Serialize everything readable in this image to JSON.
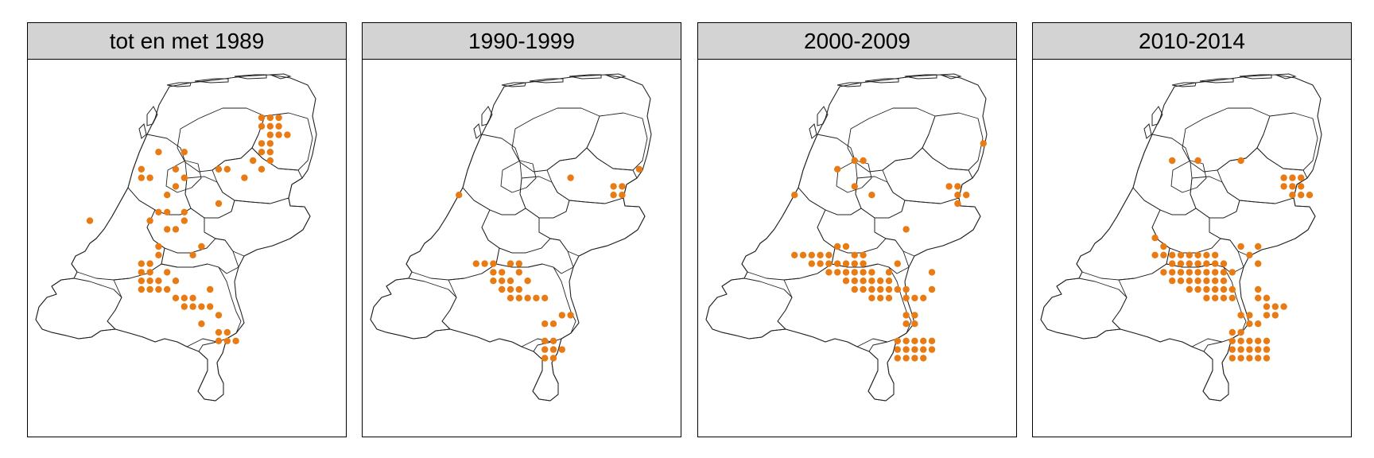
{
  "map": {
    "dot_color": "#e87b14",
    "panels": [
      {
        "title": "tot en met 1989",
        "dots": [
          [
            5,
            17
          ],
          [
            14,
            14
          ],
          [
            11,
            12
          ],
          [
            12,
            12
          ],
          [
            11,
            11
          ],
          [
            13,
            9
          ],
          [
            16,
            9
          ],
          [
            15,
            11
          ],
          [
            15,
            13
          ],
          [
            16,
            12
          ],
          [
            13,
            20
          ],
          [
            14,
            18
          ],
          [
            17,
            21
          ],
          [
            18,
            20
          ],
          [
            20,
            15
          ],
          [
            20,
            11
          ],
          [
            21,
            11
          ],
          [
            25,
            11
          ],
          [
            24,
            10
          ],
          [
            23,
            12
          ],
          [
            13,
            21
          ],
          [
            15,
            24
          ],
          [
            17,
            26
          ],
          [
            19,
            25
          ],
          [
            18,
            29
          ],
          [
            19,
            27
          ],
          [
            20,
            28
          ],
          [
            20,
            30
          ],
          [
            21,
            30
          ],
          [
            21,
            31
          ],
          [
            20,
            31
          ],
          [
            22,
            31
          ],
          [
            11,
            22
          ],
          [
            12,
            22
          ],
          [
            11,
            23
          ],
          [
            12,
            23
          ],
          [
            11,
            24
          ],
          [
            12,
            24
          ],
          [
            11,
            25
          ],
          [
            12,
            25
          ],
          [
            13,
            25
          ],
          [
            14,
            25
          ],
          [
            15,
            26
          ],
          [
            16,
            26
          ],
          [
            16,
            27
          ],
          [
            17,
            27
          ],
          [
            18,
            27
          ],
          [
            13,
            24
          ],
          [
            14,
            23
          ],
          [
            25,
            8
          ],
          [
            26,
            8
          ],
          [
            25,
            9
          ],
          [
            26,
            9
          ],
          [
            26,
            10
          ],
          [
            25,
            5
          ],
          [
            26,
            5
          ],
          [
            27,
            5
          ],
          [
            25,
            6
          ],
          [
            26,
            6
          ],
          [
            27,
            6
          ],
          [
            26,
            7
          ],
          [
            27,
            7
          ],
          [
            28,
            7
          ],
          [
            15,
            18
          ],
          [
            16,
            17
          ],
          [
            16,
            16
          ],
          [
            12,
            17
          ],
          [
            13,
            16
          ],
          [
            14,
            16
          ]
        ]
      },
      {
        "title": "1990-1999",
        "dots": [
          [
            9,
            14
          ],
          [
            11,
            22
          ],
          [
            12,
            22
          ],
          [
            13,
            22
          ],
          [
            13,
            23
          ],
          [
            13,
            24
          ],
          [
            14,
            24
          ],
          [
            15,
            24
          ],
          [
            14,
            25
          ],
          [
            15,
            25
          ],
          [
            16,
            25
          ],
          [
            15,
            26
          ],
          [
            16,
            26
          ],
          [
            17,
            26
          ],
          [
            18,
            26
          ],
          [
            19,
            26
          ],
          [
            14,
            23
          ],
          [
            15,
            22
          ],
          [
            16,
            22
          ],
          [
            16,
            23
          ],
          [
            17,
            24
          ],
          [
            19,
            29
          ],
          [
            20,
            29
          ],
          [
            21,
            28
          ],
          [
            22,
            28
          ],
          [
            19,
            31
          ],
          [
            20,
            31
          ],
          [
            19,
            32
          ],
          [
            20,
            32
          ],
          [
            21,
            32
          ],
          [
            20,
            33
          ],
          [
            19,
            33
          ],
          [
            22,
            12
          ],
          [
            27,
            13
          ],
          [
            28,
            13
          ],
          [
            27,
            14
          ],
          [
            28,
            14
          ],
          [
            30,
            11
          ]
        ]
      },
      {
        "title": "2000-2009",
        "dots": [
          [
            9,
            14
          ],
          [
            14,
            11
          ],
          [
            16,
            10
          ],
          [
            17,
            10
          ],
          [
            16,
            13
          ],
          [
            18,
            14
          ],
          [
            9,
            21
          ],
          [
            10,
            21
          ],
          [
            11,
            21
          ],
          [
            12,
            21
          ],
          [
            11,
            22
          ],
          [
            12,
            22
          ],
          [
            13,
            22
          ],
          [
            14,
            22
          ],
          [
            15,
            22
          ],
          [
            16,
            22
          ],
          [
            17,
            22
          ],
          [
            13,
            23
          ],
          [
            14,
            23
          ],
          [
            15,
            23
          ],
          [
            16,
            23
          ],
          [
            17,
            23
          ],
          [
            18,
            23
          ],
          [
            15,
            24
          ],
          [
            16,
            24
          ],
          [
            17,
            24
          ],
          [
            18,
            24
          ],
          [
            19,
            24
          ],
          [
            20,
            24
          ],
          [
            16,
            25
          ],
          [
            17,
            25
          ],
          [
            18,
            25
          ],
          [
            19,
            25
          ],
          [
            20,
            25
          ],
          [
            21,
            25
          ],
          [
            22,
            25
          ],
          [
            18,
            26
          ],
          [
            19,
            26
          ],
          [
            20,
            26
          ],
          [
            22,
            26
          ],
          [
            23,
            26
          ],
          [
            20,
            23
          ],
          [
            21,
            22
          ],
          [
            13,
            21
          ],
          [
            14,
            20
          ],
          [
            15,
            20
          ],
          [
            16,
            21
          ],
          [
            17,
            21
          ],
          [
            22,
            18
          ],
          [
            25,
            23
          ],
          [
            25,
            25
          ],
          [
            24,
            26
          ],
          [
            22,
            28
          ],
          [
            23,
            28
          ],
          [
            23,
            29
          ],
          [
            22,
            29
          ],
          [
            21,
            31
          ],
          [
            22,
            31
          ],
          [
            23,
            31
          ],
          [
            24,
            31
          ],
          [
            25,
            31
          ],
          [
            21,
            32
          ],
          [
            22,
            32
          ],
          [
            23,
            32
          ],
          [
            24,
            32
          ],
          [
            25,
            32
          ],
          [
            21,
            33
          ],
          [
            22,
            33
          ],
          [
            23,
            33
          ],
          [
            24,
            33
          ],
          [
            27,
            13
          ],
          [
            28,
            13
          ],
          [
            28,
            14
          ],
          [
            29,
            14
          ],
          [
            28,
            15
          ],
          [
            31,
            8
          ]
        ]
      },
      {
        "title": "2010-2014",
        "dots": [
          [
            14,
            10
          ],
          [
            17,
            10
          ],
          [
            22,
            10
          ],
          [
            12,
            19
          ],
          [
            13,
            20
          ],
          [
            12,
            21
          ],
          [
            13,
            21
          ],
          [
            14,
            21
          ],
          [
            15,
            21
          ],
          [
            16,
            21
          ],
          [
            17,
            21
          ],
          [
            18,
            21
          ],
          [
            19,
            21
          ],
          [
            14,
            22
          ],
          [
            15,
            22
          ],
          [
            16,
            22
          ],
          [
            17,
            22
          ],
          [
            18,
            22
          ],
          [
            19,
            22
          ],
          [
            20,
            22
          ],
          [
            13,
            23
          ],
          [
            14,
            23
          ],
          [
            15,
            23
          ],
          [
            16,
            23
          ],
          [
            17,
            23
          ],
          [
            18,
            23
          ],
          [
            19,
            23
          ],
          [
            20,
            23
          ],
          [
            21,
            23
          ],
          [
            14,
            24
          ],
          [
            15,
            24
          ],
          [
            16,
            24
          ],
          [
            17,
            24
          ],
          [
            18,
            24
          ],
          [
            19,
            24
          ],
          [
            20,
            24
          ],
          [
            16,
            25
          ],
          [
            17,
            25
          ],
          [
            18,
            25
          ],
          [
            19,
            25
          ],
          [
            20,
            25
          ],
          [
            21,
            25
          ],
          [
            18,
            26
          ],
          [
            19,
            26
          ],
          [
            20,
            26
          ],
          [
            21,
            26
          ],
          [
            22,
            20
          ],
          [
            24,
            20
          ],
          [
            24,
            22
          ],
          [
            23,
            21
          ],
          [
            24,
            25
          ],
          [
            24,
            26
          ],
          [
            25,
            26
          ],
          [
            25,
            27
          ],
          [
            26,
            27
          ],
          [
            27,
            27
          ],
          [
            22,
            28
          ],
          [
            23,
            28
          ],
          [
            21,
            30
          ],
          [
            22,
            30
          ],
          [
            21,
            31
          ],
          [
            22,
            31
          ],
          [
            23,
            31
          ],
          [
            24,
            31
          ],
          [
            25,
            31
          ],
          [
            21,
            32
          ],
          [
            22,
            32
          ],
          [
            23,
            32
          ],
          [
            24,
            32
          ],
          [
            25,
            32
          ],
          [
            21,
            33
          ],
          [
            22,
            33
          ],
          [
            23,
            33
          ],
          [
            24,
            33
          ],
          [
            25,
            33
          ],
          [
            23,
            29
          ],
          [
            24,
            29
          ],
          [
            25,
            28
          ],
          [
            26,
            28
          ],
          [
            27,
            12
          ],
          [
            28,
            12
          ],
          [
            29,
            12
          ],
          [
            27,
            13
          ],
          [
            28,
            13
          ],
          [
            29,
            13
          ],
          [
            28,
            14
          ],
          [
            29,
            14
          ],
          [
            30,
            14
          ]
        ]
      }
    ]
  }
}
